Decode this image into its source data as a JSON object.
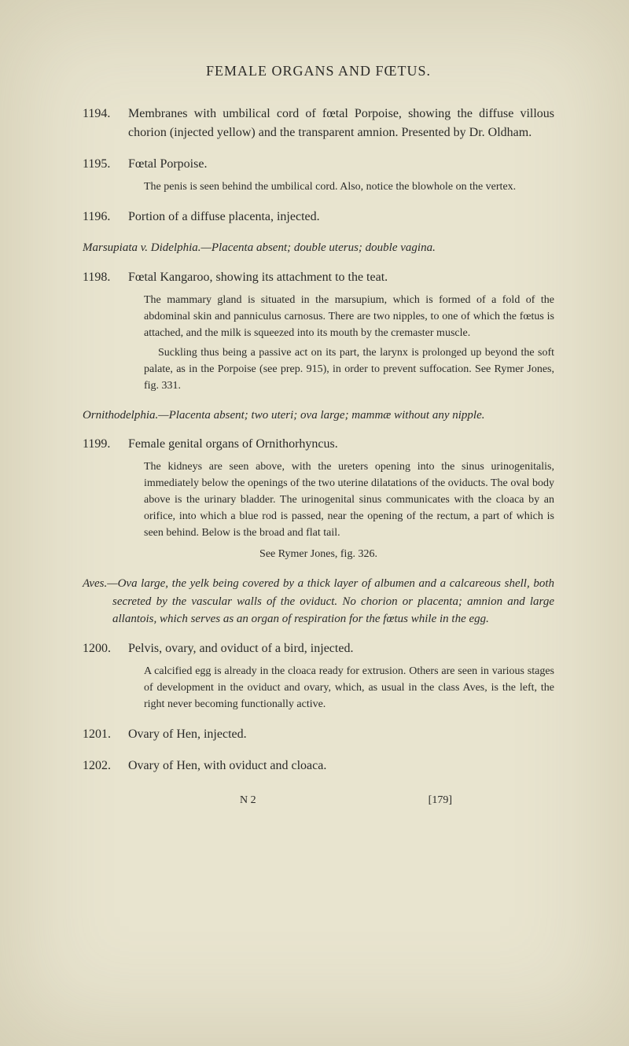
{
  "page": {
    "title": "FEMALE ORGANS AND FŒTUS.",
    "background_color": "#e8e4cf",
    "text_color": "#2a2a28",
    "footer_left": "N 2",
    "footer_right": "[179]"
  },
  "entries": [
    {
      "number": "1194.",
      "text": "Membranes with umbilical cord of fœtal Porpoise, showing the diffuse villous chorion (injected yellow) and the transparent amnion. Presented by Dr. Oldham."
    },
    {
      "number": "1195.",
      "text": "Fœtal Porpoise.",
      "desc": "The penis is seen behind the umbilical cord. Also, notice the blowhole on the vertex."
    },
    {
      "number": "1196.",
      "text": "Portion of a diffuse placenta, injected."
    }
  ],
  "section1": {
    "header": "Marsupiata v. Didelphia.—Placenta absent; double uterus; double vagina."
  },
  "entries2": [
    {
      "number": "1198.",
      "text": "Fœtal Kangaroo, showing its attachment to the teat.",
      "desc": "The mammary gland is situated in the marsupium, which is formed of a fold of the abdominal skin and panniculus carnosus. There are two nipples, to one of which the fœtus is attached, and the milk is squeezed into its mouth by the cremaster muscle.",
      "desc2": "Suckling thus being a passive act on its part, the larynx is prolonged up beyond the soft palate, as in the Porpoise (see prep. 915), in order to prevent suffocation. See Rymer Jones, fig. 331."
    }
  ],
  "section2": {
    "header": "Ornithodelphia.—Placenta absent; two uteri; ova large; mammæ without any nipple."
  },
  "entries3": [
    {
      "number": "1199.",
      "text": "Female genital organs of Ornithorhyncus.",
      "desc": "The kidneys are seen above, with the ureters opening into the sinus urinogenitalis, immediately below the openings of the two uterine dilatations of the oviducts. The oval body above is the urinary bladder. The urinogenital sinus communicates with the cloaca by an orifice, into which a blue rod is passed, near the opening of the rectum, a part of which is seen behind. Below is the broad and flat tail.",
      "desc_center": "See Rymer Jones, fig. 326."
    }
  ],
  "section3": {
    "header": "Aves.—Ova large, the yelk being covered by a thick layer of albumen and a calcareous shell, both secreted by the vascular walls of the oviduct. No chorion or placenta; amnion and large allantois, which serves as an organ of respiration for the fœtus while in the egg."
  },
  "entries4": [
    {
      "number": "1200.",
      "text": "Pelvis, ovary, and oviduct of a bird, injected.",
      "desc": "A calcified egg is already in the cloaca ready for extrusion. Others are seen in various stages of development in the oviduct and ovary, which, as usual in the class Aves, is the left, the right never becoming functionally active."
    },
    {
      "number": "1201.",
      "text": "Ovary of Hen, injected."
    },
    {
      "number": "1202.",
      "text": "Ovary of Hen, with oviduct and cloaca."
    }
  ]
}
